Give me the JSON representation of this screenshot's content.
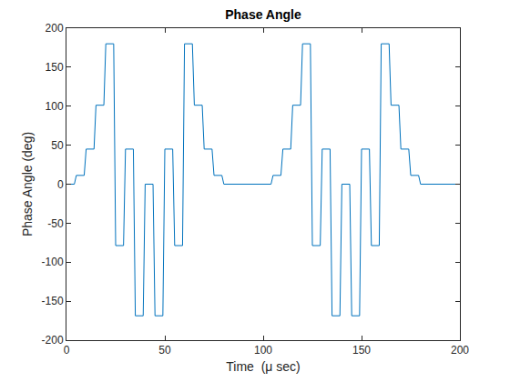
{
  "chart_data": {
    "type": "line",
    "title": "Phase Angle",
    "x_label": "Time  (μ sec)",
    "y_label": "Phase Angle (deg)",
    "x": [
      0,
      4,
      5,
      9,
      10,
      14,
      15,
      19,
      20,
      24,
      25,
      29,
      30,
      34,
      35,
      39,
      40,
      44,
      45,
      49,
      50,
      54,
      55,
      59,
      60,
      64,
      65,
      69,
      70,
      74,
      75,
      79,
      80,
      104,
      105,
      109,
      110,
      114,
      115,
      119,
      120,
      124,
      125,
      129,
      130,
      134,
      135,
      139,
      140,
      144,
      145,
      149,
      150,
      154,
      155,
      159,
      160,
      164,
      165,
      169,
      170,
      174,
      175,
      179,
      180,
      200
    ],
    "values": [
      0,
      0,
      11.25,
      11.25,
      45,
      45,
      101.25,
      101.25,
      180,
      180,
      -78.75,
      -78.75,
      45,
      45,
      -168.75,
      -168.75,
      0,
      0,
      -168.75,
      -168.75,
      45,
      45,
      -78.75,
      -78.75,
      180,
      180,
      101.25,
      101.25,
      45,
      45,
      11.25,
      11.25,
      0,
      0,
      11.25,
      11.25,
      45,
      45,
      101.25,
      101.25,
      180,
      180,
      -78.75,
      -78.75,
      45,
      45,
      -168.75,
      -168.75,
      0,
      0,
      -168.75,
      -168.75,
      45,
      45,
      -78.75,
      -78.75,
      180,
      180,
      101.25,
      101.25,
      45,
      45,
      11.25,
      11.25,
      0,
      0
    ],
    "color": "#0072bd",
    "xlim": [
      0,
      200
    ],
    "xticks": [
      0,
      50,
      100,
      150,
      200
    ],
    "ylim": [
      -200,
      200
    ],
    "yticks": [
      -200,
      -150,
      -100,
      -50,
      0,
      50,
      100,
      150,
      200
    ],
    "grid": false
  }
}
